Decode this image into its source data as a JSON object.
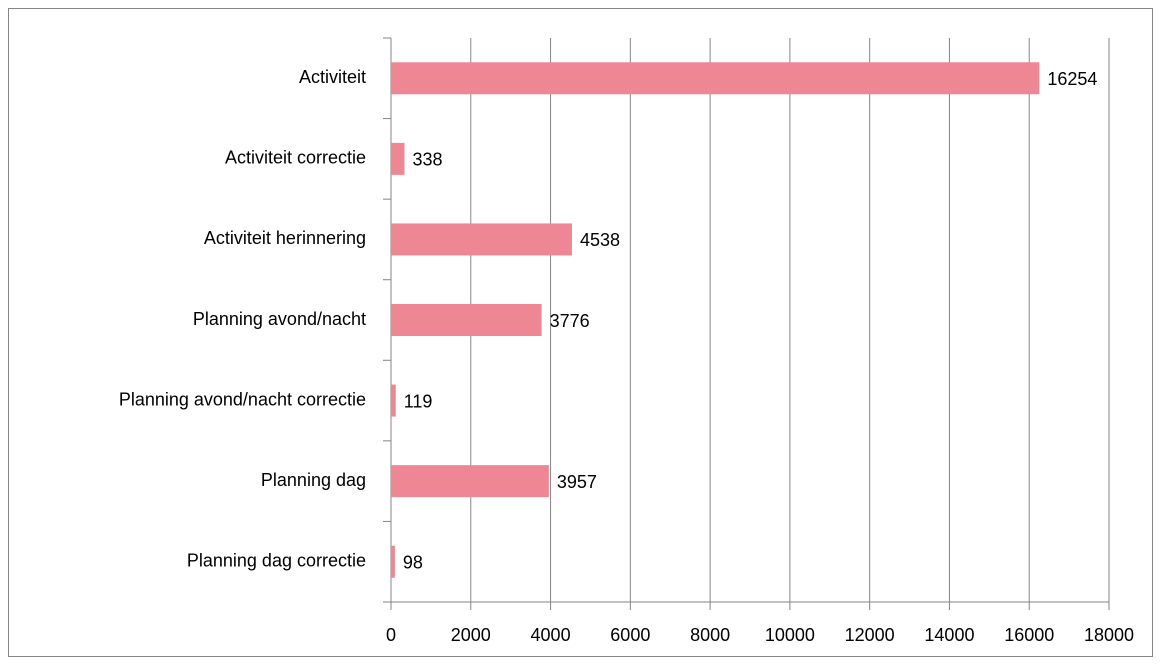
{
  "chart_data": {
    "type": "bar",
    "orientation": "horizontal",
    "categories": [
      "Activiteit",
      "Activiteit correctie",
      "Activiteit herinnering",
      "Planning avond/nacht",
      "Planning avond/nacht correctie",
      "Planning dag",
      "Planning dag correctie"
    ],
    "values": [
      16254,
      338,
      4538,
      3776,
      119,
      3957,
      98
    ],
    "color": "#ee8693",
    "xlim": [
      0,
      18000
    ],
    "xticks": [
      0,
      2000,
      4000,
      6000,
      8000,
      10000,
      12000,
      14000,
      16000,
      18000
    ],
    "grid": true
  }
}
